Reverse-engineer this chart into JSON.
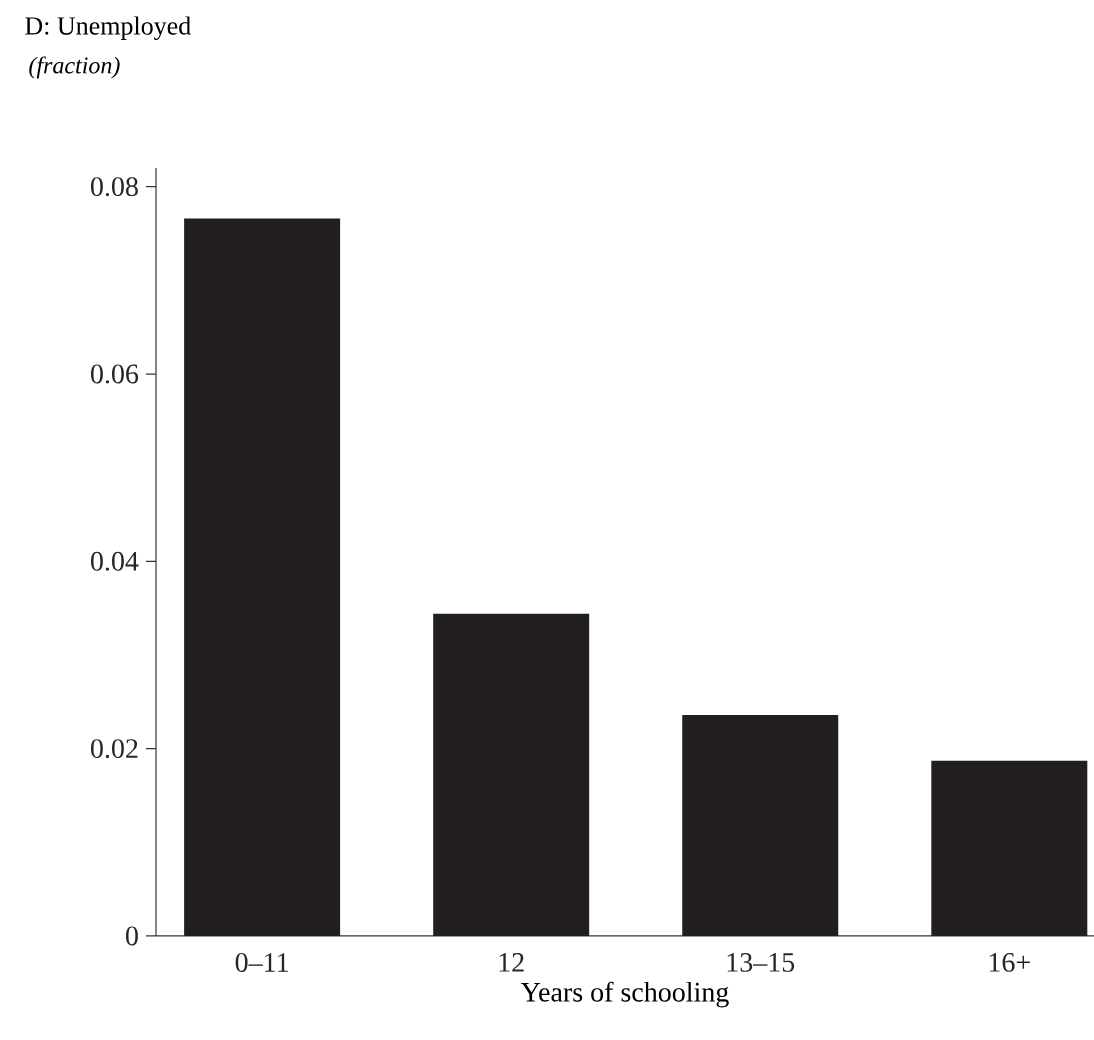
{
  "chart_data": {
    "type": "bar",
    "title": "D: Unemployed",
    "subtitle": "*(fraction)*",
    "xlabel": "Years of schooling",
    "categories": [
      "0–11",
      "12",
      "13–15",
      "16+"
    ],
    "values": [
      0.0766,
      0.0344,
      0.0236,
      0.0187
    ],
    "color": "#231f20",
    "ylim": [
      0,
      0.082
    ],
    "yticks": [
      0,
      0.02,
      0.04,
      0.06,
      0.08
    ],
    "grid": false
  }
}
